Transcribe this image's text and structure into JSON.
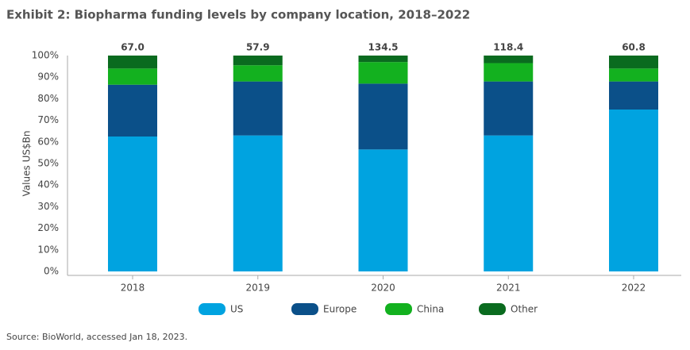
{
  "chart_data": {
    "type": "stacked-bar-100",
    "title": "Exhibit 2: Biopharma funding levels by company location, 2018–2022",
    "ylabel": "Values US$Bn",
    "source": "Source: BioWorld, accessed Jan 18, 2023.",
    "categories": [
      "2018",
      "2019",
      "2020",
      "2021",
      "2022"
    ],
    "series": [
      {
        "name": "US",
        "color": "#00a3e0",
        "values": [
          62.5,
          63,
          56.5,
          63,
          75
        ]
      },
      {
        "name": "Europe",
        "color": "#0b5089",
        "values": [
          24,
          25,
          30.5,
          25,
          13
        ]
      },
      {
        "name": "China",
        "color": "#13b11f",
        "values": [
          7.5,
          7.5,
          10,
          8.5,
          6
        ]
      },
      {
        "name": "Other",
        "color": "#0a6b1f",
        "values": [
          6,
          4.5,
          3,
          3.5,
          6
        ]
      }
    ],
    "totals": {
      "values": [
        67,
        57.9,
        134.5,
        118.4,
        60.8
      ],
      "value_labels": [
        "67.0",
        "57.9",
        "134.5",
        "118.4",
        "60.8"
      ]
    },
    "ylim": [
      0,
      100
    ],
    "yticks": [
      {
        "value": 0,
        "label": "0%"
      },
      {
        "value": 10,
        "label": "10%"
      },
      {
        "value": 20,
        "label": "20%"
      },
      {
        "value": 30,
        "label": "30%"
      },
      {
        "value": 40,
        "label": "40%"
      },
      {
        "value": 50,
        "label": "50%"
      },
      {
        "value": 60,
        "label": "60%"
      },
      {
        "value": 70,
        "label": "70%"
      },
      {
        "value": 80,
        "label": "80%"
      },
      {
        "value": 90,
        "label": "90%"
      },
      {
        "value": 100,
        "label": "100%"
      }
    ],
    "legend": "bottom"
  }
}
